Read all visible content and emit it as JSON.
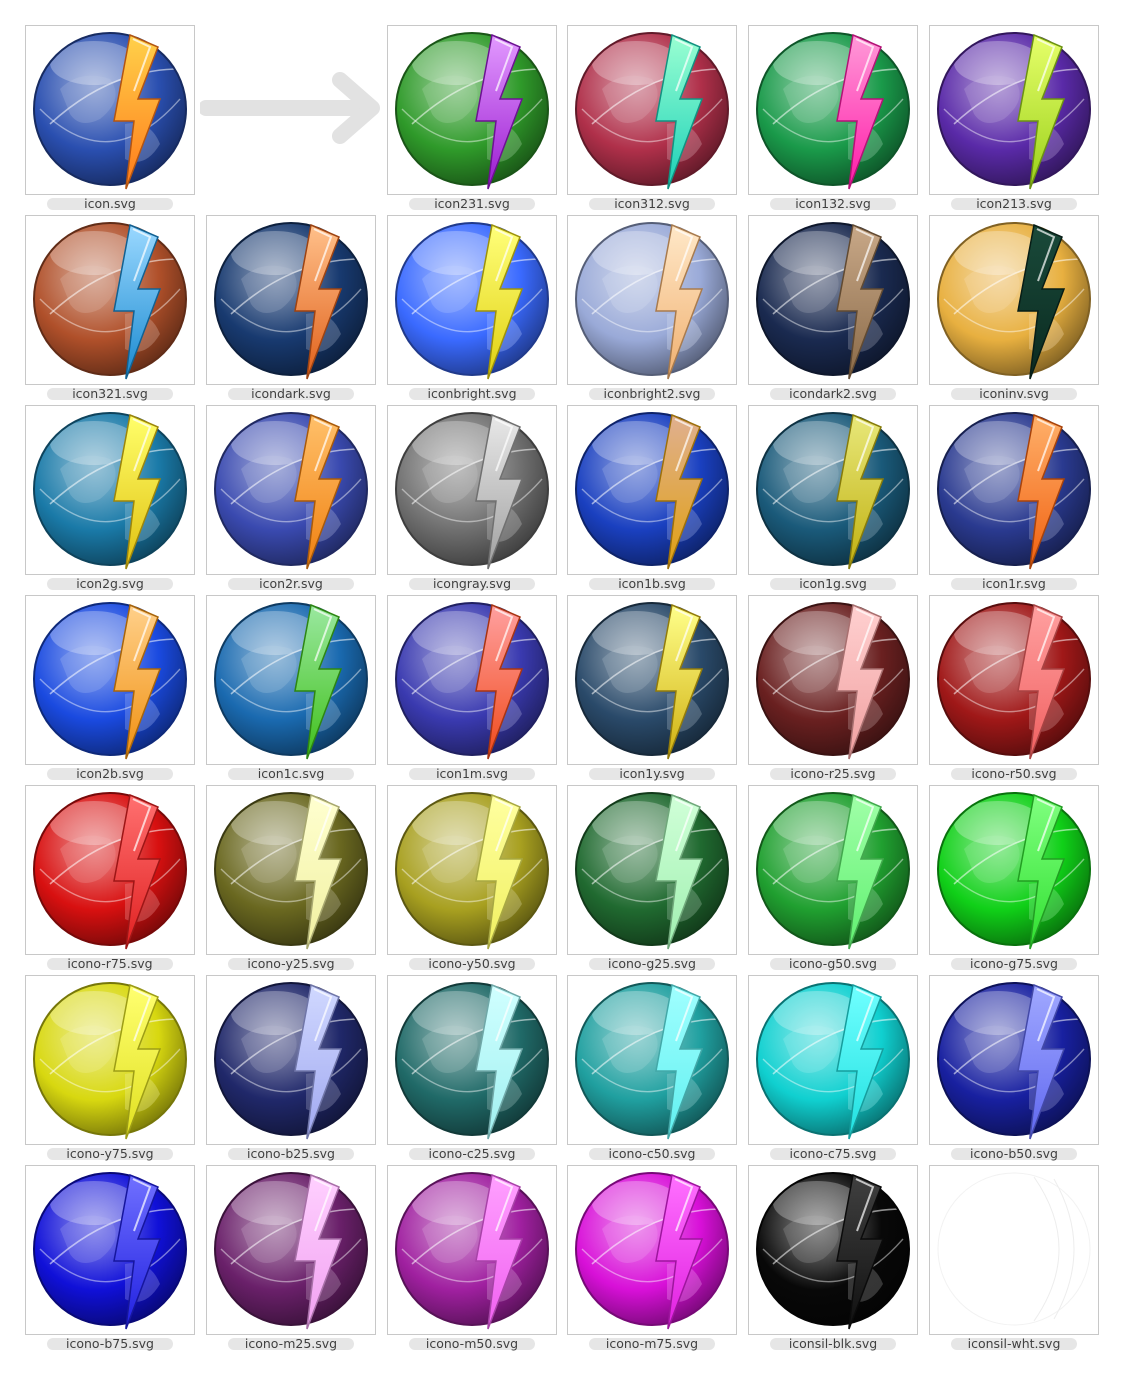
{
  "arrow_icon": "right-arrow-icon",
  "icons": [
    {
      "file": "icon.svg",
      "globe": "#2a4fb0",
      "bolt_top": "#ffd14a",
      "bolt_bottom": "#ff7a1a"
    },
    {
      "file": "icon231.svg",
      "globe": "#2f9a2a",
      "bolt_top": "#e29aff",
      "bolt_bottom": "#9a1ad0"
    },
    {
      "file": "icon312.svg",
      "globe": "#b0304a",
      "bolt_top": "#9affd2",
      "bolt_bottom": "#1ad0b8"
    },
    {
      "file": "icon132.svg",
      "globe": "#1a9a4a",
      "bolt_top": "#ff9ad8",
      "bolt_bottom": "#ff1aa8"
    },
    {
      "file": "icon213.svg",
      "globe": "#5a2aa8",
      "bolt_top": "#e6ff6a",
      "bolt_bottom": "#9ad01a"
    },
    {
      "file": "icon321.svg",
      "globe": "#b0502a",
      "bolt_top": "#9ad8ff",
      "bolt_bottom": "#1a8ad0"
    },
    {
      "file": "icondark.svg",
      "globe": "#183a70",
      "bolt_top": "#ffc08a",
      "bolt_bottom": "#e0601a"
    },
    {
      "file": "iconbright.svg",
      "globe": "#3a6aff",
      "bolt_top": "#ffff7a",
      "bolt_bottom": "#e0d010"
    },
    {
      "file": "iconbright2.svg",
      "globe": "#9aaad8",
      "bolt_top": "#ffe8c8",
      "bolt_bottom": "#f0b070"
    },
    {
      "file": "icondark2.svg",
      "globe": "#1a2a50",
      "bolt_top": "#c8a888",
      "bolt_bottom": "#8a6a48"
    },
    {
      "file": "iconinv.svg",
      "globe": "#e8b040",
      "bolt_top": "#1a4a3a",
      "bolt_bottom": "#0a2a20"
    },
    {
      "file": "icon2g.svg",
      "globe": "#1a7aa8",
      "bolt_top": "#ffff6a",
      "bolt_bottom": "#e0c010"
    },
    {
      "file": "icon2r.svg",
      "globe": "#3a4ab0",
      "bolt_top": "#ffc06a",
      "bolt_bottom": "#f08010"
    },
    {
      "file": "icongray.svg",
      "globe": "#707070",
      "bolt_top": "#e8e8e8",
      "bolt_bottom": "#a0a0a0"
    },
    {
      "file": "icon1b.svg",
      "globe": "#1a40c0",
      "bolt_top": "#e0b090",
      "bolt_bottom": "#e0a010"
    },
    {
      "file": "icon1g.svg",
      "globe": "#1a5a7a",
      "bolt_top": "#e8e87a",
      "bolt_bottom": "#c0b010"
    },
    {
      "file": "icon1r.svg",
      "globe": "#2a3a90",
      "bolt_top": "#ffb06a",
      "bolt_bottom": "#f06010"
    },
    {
      "file": "icon2b.svg",
      "globe": "#1a4ae0",
      "bolt_top": "#ffd08a",
      "bolt_bottom": "#f09010"
    },
    {
      "file": "icon1c.svg",
      "globe": "#1a6ab0",
      "bolt_top": "#9ae8a0",
      "bolt_bottom": "#40c01a"
    },
    {
      "file": "icon1m.svg",
      "globe": "#3a3ab0",
      "bolt_top": "#ffa0a0",
      "bolt_bottom": "#f04a1a"
    },
    {
      "file": "icon1y.svg",
      "globe": "#2a4a6a",
      "bolt_top": "#ffff8a",
      "bolt_bottom": "#d0b010"
    },
    {
      "file": "icono-r25.svg",
      "globe": "#6a2020",
      "bolt_top": "#ffd0d0",
      "bolt_bottom": "#f0a0a0"
    },
    {
      "file": "icono-r50.svg",
      "globe": "#a01818",
      "bolt_top": "#ffa0a0",
      "bolt_bottom": "#f06060"
    },
    {
      "file": "icono-r75.svg",
      "globe": "#d81010",
      "bolt_top": "#ff7070",
      "bolt_bottom": "#e02020"
    },
    {
      "file": "icono-y25.svg",
      "globe": "#6a6820",
      "bolt_top": "#ffffd0",
      "bolt_bottom": "#f0f0a0"
    },
    {
      "file": "icono-y50.svg",
      "globe": "#a8a020",
      "bolt_top": "#ffffa0",
      "bolt_bottom": "#f0f060"
    },
    {
      "file": "icono-g25.svg",
      "globe": "#206a30",
      "bolt_top": "#d0ffd8",
      "bolt_bottom": "#a0f0b0"
    },
    {
      "file": "icono-g50.svg",
      "globe": "#20a030",
      "bolt_top": "#a0ffa8",
      "bolt_bottom": "#60f070"
    },
    {
      "file": "icono-g75.svg",
      "globe": "#10d018",
      "bolt_top": "#80ff80",
      "bolt_bottom": "#30e030"
    },
    {
      "file": "icono-y75.svg",
      "globe": "#d8d810",
      "bolt_top": "#ffff70",
      "bolt_bottom": "#e0e020"
    },
    {
      "file": "icono-b25.svg",
      "globe": "#20286a",
      "bolt_top": "#d0d8ff",
      "bolt_bottom": "#a0a8f0"
    },
    {
      "file": "icono-c25.svg",
      "globe": "#206a68",
      "bolt_top": "#d0ffff",
      "bolt_bottom": "#a0f0f0"
    },
    {
      "file": "icono-c50.svg",
      "globe": "#20a0a0",
      "bolt_top": "#a0ffff",
      "bolt_bottom": "#60f0f0"
    },
    {
      "file": "icono-c75.svg",
      "globe": "#10d0d0",
      "bolt_top": "#70ffff",
      "bolt_bottom": "#20e0e0"
    },
    {
      "file": "icono-b50.svg",
      "globe": "#1820a0",
      "bolt_top": "#a0a8ff",
      "bolt_bottom": "#6068f0"
    },
    {
      "file": "icono-b75.svg",
      "globe": "#1010d8",
      "bolt_top": "#7070ff",
      "bolt_bottom": "#2020e0"
    },
    {
      "file": "icono-m25.svg",
      "globe": "#6a206a",
      "bolt_top": "#ffd0ff",
      "bolt_bottom": "#f0a0f0"
    },
    {
      "file": "icono-m50.svg",
      "globe": "#a020a0",
      "bolt_top": "#ffa0ff",
      "bolt_bottom": "#f060f0"
    },
    {
      "file": "icono-m75.svg",
      "globe": "#d810d8",
      "bolt_top": "#ff70ff",
      "bolt_bottom": "#e020e0"
    },
    {
      "file": "iconsil-blk.svg",
      "globe": "#080808",
      "bolt_top": "#404040",
      "bolt_bottom": "#101010"
    },
    {
      "file": "iconsil-wht.svg",
      "globe": "#ffffff",
      "bolt_top": "#ffffff",
      "bolt_bottom": "#ffffff"
    }
  ]
}
